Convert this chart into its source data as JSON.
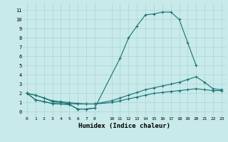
{
  "xlabel": "Humidex (Indice chaleur)",
  "bg_color": "#c8eaea",
  "grid_color": "#b0d8d8",
  "line_color": "#1a7070",
  "xlim": [
    -0.5,
    23.5
  ],
  "ylim": [
    -0.5,
    11.8
  ],
  "xtick_positions": [
    0,
    1,
    2,
    3,
    4,
    5,
    6,
    7,
    8,
    10,
    11,
    12,
    13,
    14,
    15,
    16,
    17,
    18,
    19,
    20,
    21,
    22,
    23
  ],
  "ytick_positions": [
    0,
    1,
    2,
    3,
    4,
    5,
    6,
    7,
    8,
    9,
    10,
    11
  ],
  "series0_x": [
    0,
    1,
    2,
    3,
    4,
    5,
    6,
    7,
    8,
    11,
    12,
    13,
    14,
    15,
    16,
    17,
    18,
    19,
    20
  ],
  "series0_y": [
    2.0,
    1.3,
    1.1,
    0.9,
    0.85,
    0.8,
    0.3,
    0.3,
    0.4,
    5.8,
    8.0,
    9.3,
    10.5,
    10.6,
    10.8,
    10.8,
    10.0,
    7.5,
    5.0
  ],
  "series1_x": [
    0,
    1,
    2,
    3,
    4,
    5,
    6,
    7,
    8
  ],
  "series1_y": [
    2.0,
    1.3,
    1.1,
    0.9,
    0.85,
    0.8,
    0.3,
    0.3,
    0.4
  ],
  "series2_x": [
    0,
    1,
    2,
    3,
    4,
    5,
    6,
    7,
    8,
    10,
    11,
    12,
    13,
    14,
    15,
    16,
    17,
    18,
    19,
    20,
    21,
    22,
    23
  ],
  "series2_y": [
    2.0,
    1.8,
    1.5,
    1.2,
    1.1,
    1.0,
    0.9,
    0.85,
    0.85,
    1.2,
    1.5,
    1.8,
    2.1,
    2.4,
    2.6,
    2.8,
    3.0,
    3.2,
    3.5,
    3.8,
    3.2,
    2.5,
    2.4
  ],
  "series3_x": [
    0,
    1,
    2,
    3,
    4,
    5,
    6,
    7,
    8,
    10,
    11,
    12,
    13,
    14,
    15,
    16,
    17,
    18,
    19,
    20,
    21,
    22,
    23
  ],
  "series3_y": [
    2.0,
    1.8,
    1.5,
    1.1,
    1.0,
    0.9,
    0.85,
    0.85,
    0.85,
    1.0,
    1.2,
    1.4,
    1.6,
    1.8,
    2.0,
    2.1,
    2.2,
    2.3,
    2.4,
    2.5,
    2.4,
    2.3,
    2.3
  ]
}
